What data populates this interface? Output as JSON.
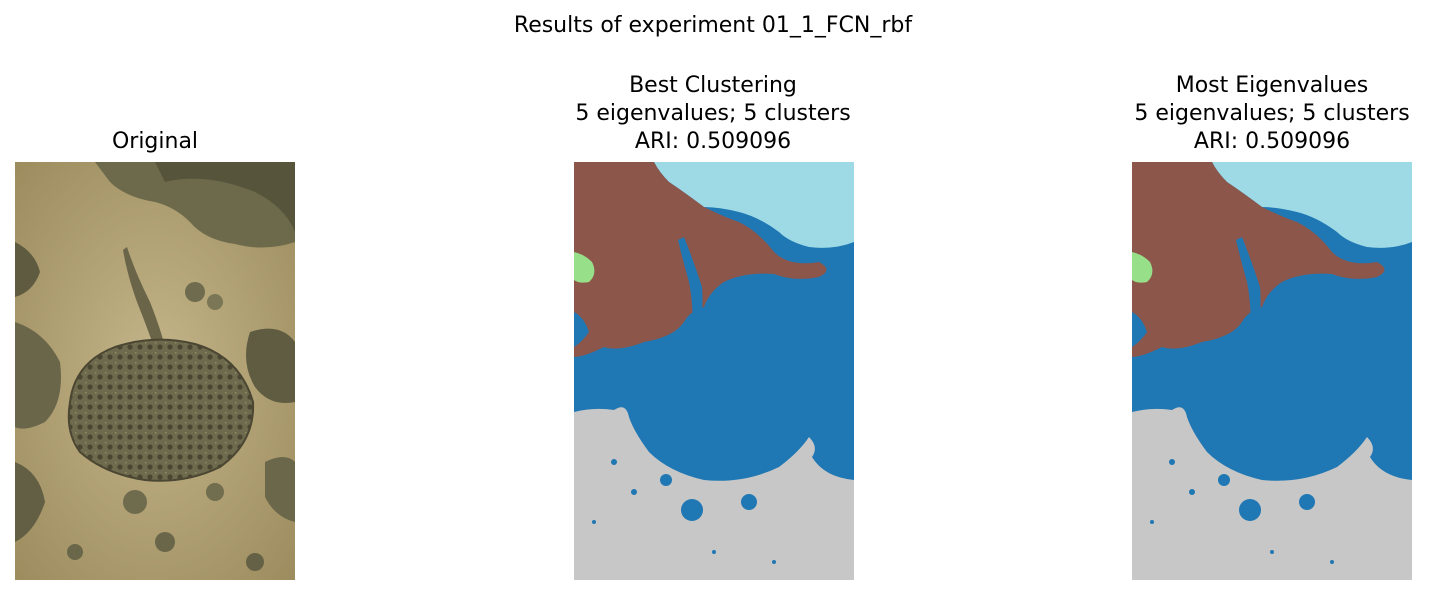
{
  "figure": {
    "title": "Results of experiment 01_1_FCN_rbf"
  },
  "panels": [
    {
      "title_lines": [
        "Original"
      ]
    },
    {
      "title_lines": [
        "Best Clustering",
        "5 eigenvalues; 5 clusters",
        "ARI: 0.509096"
      ]
    },
    {
      "title_lines": [
        "Most Eigenvalues",
        "5 eigenvalues; 5 clusters",
        "ARI: 0.509096"
      ]
    }
  ],
  "colors": {
    "sand": "#b5a67a",
    "rock": "#6f6a4c",
    "cluster_brown": "#8c564b",
    "cluster_lightblue": "#9edae5",
    "cluster_blue": "#1f77b4",
    "cluster_gray": "#c7c7c7",
    "cluster_green": "#98df8a"
  }
}
